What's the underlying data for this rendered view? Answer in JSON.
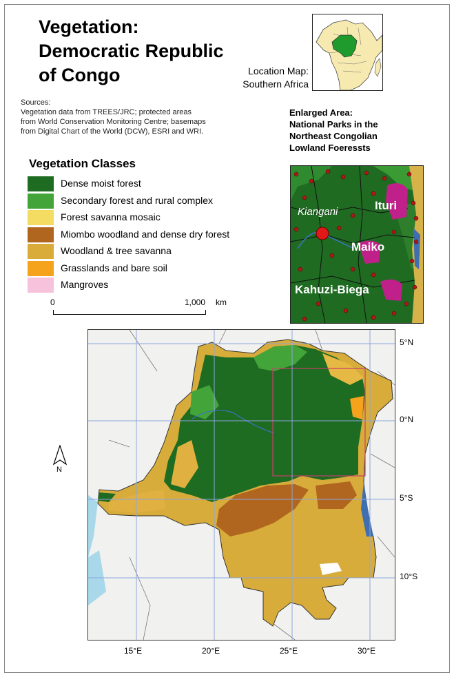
{
  "title": {
    "line1": "Vegetation:",
    "line2": "Democratic Republic",
    "line3": "of Congo"
  },
  "location_map": {
    "label_line1": "Location Map:",
    "label_line2": "Southern Africa"
  },
  "sources": {
    "heading": "Sources:",
    "line1": "Vegetation data from TREES/JRC; protected areas",
    "line2": "from World Conservation Monitoring Centre; basemaps",
    "line3": "from Digital Chart of the World (DCW), ESRI and WRI."
  },
  "enlarged_area": {
    "title_line1": "Enlarged Area:",
    "title_line2": "National Parks in the",
    "title_line3": "Northeast Congolian",
    "title_line4": "Lowland Foeressts",
    "places": {
      "kiangani": "Kiangani",
      "ituri": "Ituri",
      "maiko": "Maiko",
      "kahuzi": "Kahuzi-Biega"
    }
  },
  "legend": {
    "title": "Vegetation Classes",
    "items": [
      {
        "label": "Dense moist forest",
        "color": "#1e6b22"
      },
      {
        "label": "Secondary forest and rural complex",
        "color": "#43a43a"
      },
      {
        "label": "Forest savanna mosaic",
        "color": "#f4dc62"
      },
      {
        "label": "Miombo woodland and dense dry forest",
        "color": "#b0661e"
      },
      {
        "label": "Woodland & tree savanna",
        "color": "#d9ac3a"
      },
      {
        "label": "Grasslands and bare soil",
        "color": "#f5a21c"
      },
      {
        "label": "Mangroves",
        "color": "#f6c2dc"
      }
    ]
  },
  "scale": {
    "start": "0",
    "end": "1,000",
    "unit": "km"
  },
  "north_label": "N",
  "latitudes": [
    "5°N",
    "0°N",
    "5°S",
    "10°S"
  ],
  "longitudes": [
    "15°E",
    "20°E",
    "25°E",
    "30°E"
  ]
}
